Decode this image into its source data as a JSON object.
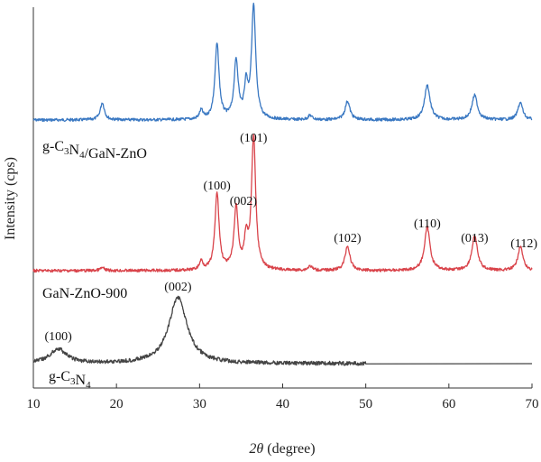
{
  "chart_data": {
    "type": "line",
    "xlabel": "2θ (degree)",
    "ylabel": "Intensity (cps)",
    "xlim": [
      10,
      70
    ],
    "xticks": [
      10,
      20,
      30,
      40,
      50,
      60,
      70
    ],
    "grid": false,
    "series": [
      {
        "name": "g-C3N4/GaN-ZnO",
        "label_parts": {
          "pre": "g-C",
          "sub1": "3",
          "mid": "N",
          "sub2": "4",
          "post": "/GaN-ZnO"
        },
        "color": "#3a78c2",
        "x_range": [
          10,
          70
        ],
        "peaks": [
          {
            "x": 18.3,
            "h": 0.12,
            "w": 0.3
          },
          {
            "x": 30.2,
            "h": 0.06,
            "w": 0.25
          },
          {
            "x": 32.1,
            "h": 0.52,
            "w": 0.3
          },
          {
            "x": 34.4,
            "h": 0.4,
            "w": 0.3
          },
          {
            "x": 35.6,
            "h": 0.22,
            "w": 0.25
          },
          {
            "x": 36.5,
            "h": 0.78,
            "w": 0.3
          },
          {
            "x": 43.3,
            "h": 0.03,
            "w": 0.3
          },
          {
            "x": 47.8,
            "h": 0.13,
            "w": 0.35
          },
          {
            "x": 57.4,
            "h": 0.24,
            "w": 0.4
          },
          {
            "x": 63.1,
            "h": 0.17,
            "w": 0.4
          },
          {
            "x": 68.6,
            "h": 0.12,
            "w": 0.35
          }
        ]
      },
      {
        "name": "GaN-ZnO-900",
        "label_parts": {
          "pre": "GaN-ZnO-900",
          "sub1": "",
          "mid": "",
          "sub2": "",
          "post": ""
        },
        "color": "#d9434a",
        "x_range": [
          10,
          70
        ],
        "peaks": [
          {
            "x": 18.3,
            "h": 0.02,
            "w": 0.3
          },
          {
            "x": 30.2,
            "h": 0.06,
            "w": 0.25
          },
          {
            "x": 32.1,
            "h": 0.53,
            "w": 0.3
          },
          {
            "x": 34.4,
            "h": 0.43,
            "w": 0.3
          },
          {
            "x": 35.6,
            "h": 0.2,
            "w": 0.25
          },
          {
            "x": 36.5,
            "h": 0.92,
            "w": 0.3
          },
          {
            "x": 43.3,
            "h": 0.03,
            "w": 0.3
          },
          {
            "x": 47.8,
            "h": 0.17,
            "w": 0.35
          },
          {
            "x": 57.4,
            "h": 0.3,
            "w": 0.4
          },
          {
            "x": 63.1,
            "h": 0.24,
            "w": 0.4
          },
          {
            "x": 68.6,
            "h": 0.17,
            "w": 0.35
          }
        ]
      },
      {
        "name": "g-C3N4",
        "label_parts": {
          "pre": "g-C",
          "sub1": "3",
          "mid": "N",
          "sub2": "4",
          "post": ""
        },
        "color": "#444444",
        "x_range": [
          10,
          50
        ],
        "flat_to": 70,
        "peaks": [
          {
            "x": 13.0,
            "h": 0.1,
            "w": 1.2
          },
          {
            "x": 27.4,
            "h": 0.46,
            "w": 1.3
          }
        ]
      }
    ],
    "peak_labels": [
      {
        "text": "(101)",
        "x": 36.5
      },
      {
        "text": "(100)",
        "x": 32.1
      },
      {
        "text": "(002)",
        "x": 34.4
      },
      {
        "text": "(102)",
        "x": 47.8
      },
      {
        "text": "(110)",
        "x": 57.4
      },
      {
        "text": "(013)",
        "x": 63.1
      },
      {
        "text": "(112)",
        "x": 68.6
      },
      {
        "text": "(002)",
        "x": 27.4
      },
      {
        "text": "(100)",
        "x": 13.0
      }
    ]
  }
}
